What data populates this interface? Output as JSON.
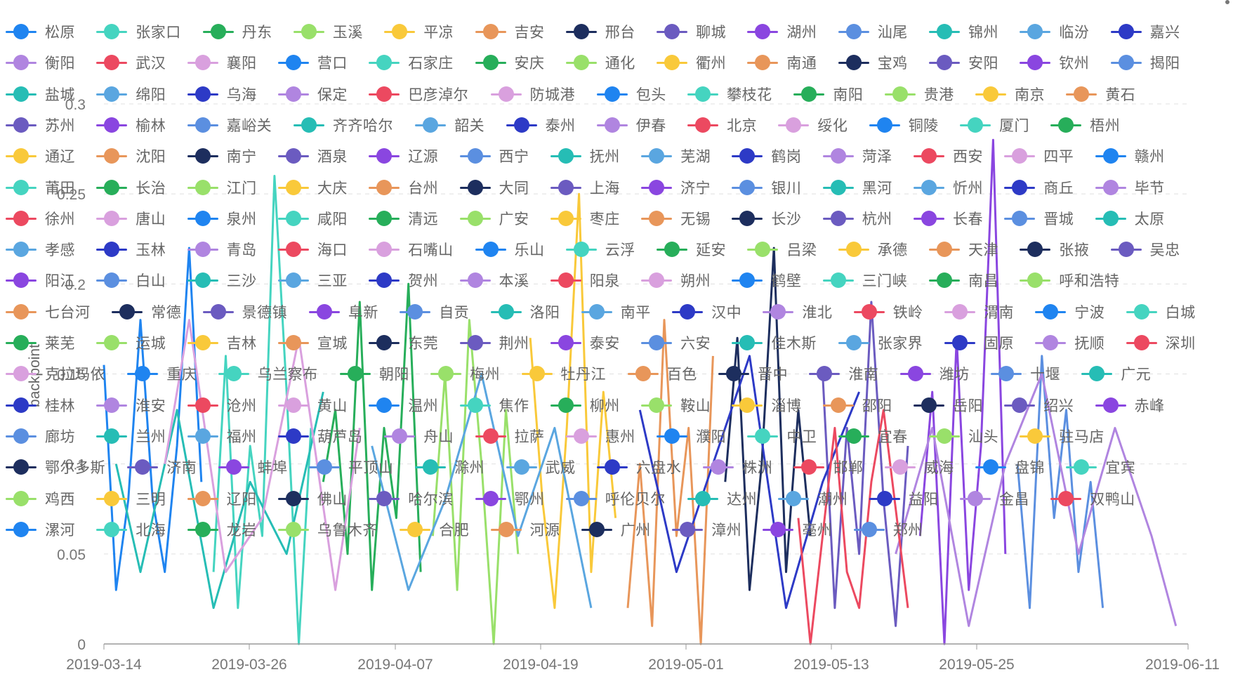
{
  "chart_data": {
    "type": "line",
    "ylabel": "backpoint",
    "yticks": [
      "0",
      "0.05",
      "0.1",
      "0.15",
      "0.2",
      "0.25",
      "0.3"
    ],
    "ylim": [
      0,
      0.3
    ],
    "xlabels": [
      "2019-03-14",
      "2019-03-26",
      "2019-04-07",
      "2019-04-19",
      "2019-05-01",
      "2019-05-13",
      "2019-05-25",
      "2019-06-11"
    ],
    "xrange_days": [
      0,
      89
    ],
    "legend_rows": [
      [
        "松原",
        "张家口",
        "丹东",
        "玉溪",
        "平凉",
        "吉安",
        "邢台",
        "聊城",
        "湖州",
        "汕尾",
        "锦州",
        "临汾",
        "嘉兴"
      ],
      [
        "衡阳",
        "武汉",
        "襄阳",
        "营口",
        "石家庄",
        "安庆",
        "通化",
        "衢州",
        "南通",
        "宝鸡",
        "安阳",
        "钦州",
        "揭阳"
      ],
      [
        "盐城",
        "绵阳",
        "乌海",
        "保定",
        "巴彦淖尔",
        "防城港",
        "包头",
        "攀枝花",
        "南阳",
        "贵港",
        "南京",
        "黄石"
      ],
      [
        "苏州",
        "榆林",
        "嘉峪关",
        "齐齐哈尔",
        "韶关",
        "泰州",
        "伊春",
        "北京",
        "绥化",
        "铜陵",
        "厦门",
        "梧州"
      ],
      [
        "通辽",
        "沈阳",
        "南宁",
        "酒泉",
        "辽源",
        "西宁",
        "抚州",
        "芜湖",
        "鹤岗",
        "菏泽",
        "西安",
        "四平",
        "赣州"
      ],
      [
        "莆田",
        "长治",
        "江门",
        "大庆",
        "台州",
        "大同",
        "上海",
        "济宁",
        "银川",
        "黑河",
        "忻州",
        "商丘",
        "毕节"
      ],
      [
        "徐州",
        "唐山",
        "泉州",
        "咸阳",
        "清远",
        "广安",
        "枣庄",
        "无锡",
        "长沙",
        "杭州",
        "长春",
        "晋城",
        "太原"
      ],
      [
        "孝感",
        "玉林",
        "青岛",
        "海口",
        "石嘴山",
        "乐山",
        "云浮",
        "延安",
        "吕梁",
        "承德",
        "天津",
        "张掖",
        "吴忠"
      ],
      [
        "阳江",
        "白山",
        "三沙",
        "三亚",
        "贺州",
        "本溪",
        "阳泉",
        "朔州",
        "鹤壁",
        "三门峡",
        "南昌",
        "呼和浩特"
      ],
      [
        "七台河",
        "常德",
        "景德镇",
        "阜新",
        "自贡",
        "洛阳",
        "南平",
        "汉中",
        "淮北",
        "铁岭",
        "渭南",
        "宁波",
        "白城"
      ],
      [
        "莱芜",
        "运城",
        "吉林",
        "宣城",
        "东莞",
        "荆州",
        "泰安",
        "六安",
        "佳木斯",
        "张家界",
        "固原",
        "抚顺",
        "深圳"
      ],
      [
        "克拉玛依",
        "重庆",
        "乌兰察布",
        "朝阳",
        "梅州",
        "牡丹江",
        "百色",
        "晋中",
        "淮南",
        "潍坊",
        "十堰",
        "广元"
      ],
      [
        "桂林",
        "淮安",
        "沧州",
        "黄山",
        "温州",
        "焦作",
        "柳州",
        "鞍山",
        "淄博",
        "邵阳",
        "岳阳",
        "绍兴",
        "赤峰"
      ],
      [
        "廊坊",
        "兰州",
        "福州",
        "葫芦岛",
        "舟山",
        "拉萨",
        "惠州",
        "濮阳",
        "中卫",
        "宜春",
        "汕头",
        "驻马店"
      ],
      [
        "鄂尔多斯",
        "济南",
        "蚌埠",
        "平顶山",
        "滁州",
        "武威",
        "六盘水",
        "株洲",
        "邯郸",
        "威海",
        "盘锦",
        "宜宾"
      ],
      [
        "鸡西",
        "三明",
        "辽阳",
        "佛山",
        "哈尔滨",
        "鄂州",
        "呼伦贝尔",
        "达州",
        "潮州",
        "益阳",
        "金昌",
        "双鸭山"
      ],
      [
        "漯河",
        "北海",
        "龙岩",
        "乌鲁木齐",
        "合肥",
        "河源",
        "广州",
        "漳州",
        "亳州",
        "郑州"
      ]
    ],
    "palette": [
      "#1f84f0",
      "#45d4c0",
      "#27ae5a",
      "#99e06a",
      "#f9c93a",
      "#e8965a",
      "#1d2e5e",
      "#6b5bc0",
      "#8a46e0",
      "#5b8fe0",
      "#26bdb5",
      "#5aa6e0",
      "#2d3ac6",
      "#b085e0",
      "#ec4960",
      "#d9a0de"
    ],
    "series": [
      {
        "values": [
          [
            0,
            0.155
          ],
          [
            1,
            0.03
          ],
          [
            2,
            0.08
          ],
          [
            3,
            0.18
          ],
          [
            4,
            0.08
          ],
          [
            5,
            0.04
          ],
          [
            6,
            0.11
          ],
          [
            7,
            0.22
          ],
          [
            8,
            0.09
          ]
        ]
      },
      {
        "values": [
          [
            9,
            0.04
          ],
          [
            10,
            0.16
          ],
          [
            11,
            0.02
          ],
          [
            12,
            0.11
          ],
          [
            13,
            0.06
          ],
          [
            14,
            0.26
          ],
          [
            15,
            0.14
          ],
          [
            16,
            0.0
          ],
          [
            17,
            0.12
          ]
        ]
      },
      {
        "values": [
          [
            18,
            0.09
          ],
          [
            19,
            0.13
          ],
          [
            20,
            0.05
          ],
          [
            21,
            0.19
          ],
          [
            22,
            0.03
          ],
          [
            23,
            0.12
          ],
          [
            24,
            0.07
          ],
          [
            25,
            0.2
          ],
          [
            26,
            0.04
          ]
        ]
      },
      {
        "values": [
          [
            27,
            0.06
          ],
          [
            28,
            0.15
          ],
          [
            29,
            0.03
          ],
          [
            30,
            0.18
          ],
          [
            31,
            0.1
          ],
          [
            32,
            0.0
          ],
          [
            33,
            0.13
          ],
          [
            34,
            0.05
          ]
        ]
      },
      {
        "values": [
          [
            35,
            0.17
          ],
          [
            36,
            0.08
          ],
          [
            37,
            0.02
          ],
          [
            38,
            0.12
          ],
          [
            39,
            0.25
          ],
          [
            40,
            0.04
          ],
          [
            41,
            0.14
          ],
          [
            42,
            0.07
          ]
        ]
      },
      {
        "values": [
          [
            43,
            0.02
          ],
          [
            44,
            0.1
          ],
          [
            45,
            0.01
          ],
          [
            46,
            0.18
          ],
          [
            47,
            0.06
          ],
          [
            48,
            0.12
          ],
          [
            49,
            0.0
          ],
          [
            50,
            0.16
          ]
        ]
      },
      {
        "values": [
          [
            51,
            0.09
          ],
          [
            52,
            0.17
          ],
          [
            53,
            0.03
          ],
          [
            54,
            0.1
          ],
          [
            55,
            0.22
          ],
          [
            56,
            0.04
          ],
          [
            57,
            0.13
          ],
          [
            58,
            0.06
          ]
        ]
      },
      {
        "values": [
          [
            59,
            0.15
          ],
          [
            60,
            0.02
          ],
          [
            61,
            0.12
          ],
          [
            62,
            0.05
          ],
          [
            63,
            0.19
          ],
          [
            64,
            0.08
          ],
          [
            65,
            0.01
          ],
          [
            66,
            0.11
          ]
        ]
      },
      {
        "values": [
          [
            67,
            0.06
          ],
          [
            68,
            0.14
          ],
          [
            69,
            0.0
          ],
          [
            70,
            0.17
          ],
          [
            71,
            0.03
          ],
          [
            72,
            0.11
          ],
          [
            73,
            0.28
          ],
          [
            74,
            0.05
          ]
        ]
      },
      {
        "values": [
          [
            75,
            0.1
          ],
          [
            76,
            0.02
          ],
          [
            77,
            0.16
          ],
          [
            78,
            0.07
          ],
          [
            79,
            0.13
          ],
          [
            80,
            0.04
          ],
          [
            81,
            0.09
          ],
          [
            82,
            0.02
          ]
        ]
      },
      {
        "values": [
          [
            1,
            0.1
          ],
          [
            3,
            0.04
          ],
          [
            6,
            0.13
          ],
          [
            9,
            0.02
          ],
          [
            12,
            0.09
          ],
          [
            15,
            0.05
          ],
          [
            18,
            0.14
          ]
        ]
      },
      {
        "values": [
          [
            22,
            0.11
          ],
          [
            25,
            0.03
          ],
          [
            28,
            0.08
          ],
          [
            31,
            0.15
          ],
          [
            34,
            0.06
          ],
          [
            37,
            0.12
          ],
          [
            40,
            0.02
          ]
        ]
      },
      {
        "values": [
          [
            44,
            0.13
          ],
          [
            47,
            0.04
          ],
          [
            50,
            0.1
          ],
          [
            53,
            0.16
          ],
          [
            56,
            0.02
          ],
          [
            59,
            0.09
          ],
          [
            62,
            0.14
          ]
        ]
      },
      {
        "values": [
          [
            65,
            0.05
          ],
          [
            68,
            0.12
          ],
          [
            71,
            0.01
          ],
          [
            74,
            0.1
          ],
          [
            77,
            0.15
          ],
          [
            80,
            0.05
          ],
          [
            83,
            0.12
          ],
          [
            86,
            0.06
          ],
          [
            88,
            0.01
          ]
        ]
      },
      {
        "values": [
          [
            57,
            0.07
          ],
          [
            58,
            0.0
          ],
          [
            60,
            0.12
          ],
          [
            61,
            0.04
          ],
          [
            62,
            0.02
          ],
          [
            63,
            0.09
          ],
          [
            64,
            0.13
          ],
          [
            66,
            0.02
          ]
        ]
      },
      {
        "values": [
          [
            5,
            0.1
          ],
          [
            7,
            0.18
          ],
          [
            10,
            0.04
          ],
          [
            13,
            0.07
          ],
          [
            16,
            0.17
          ],
          [
            19,
            0.03
          ],
          [
            21,
            0.12
          ]
        ]
      }
    ]
  }
}
